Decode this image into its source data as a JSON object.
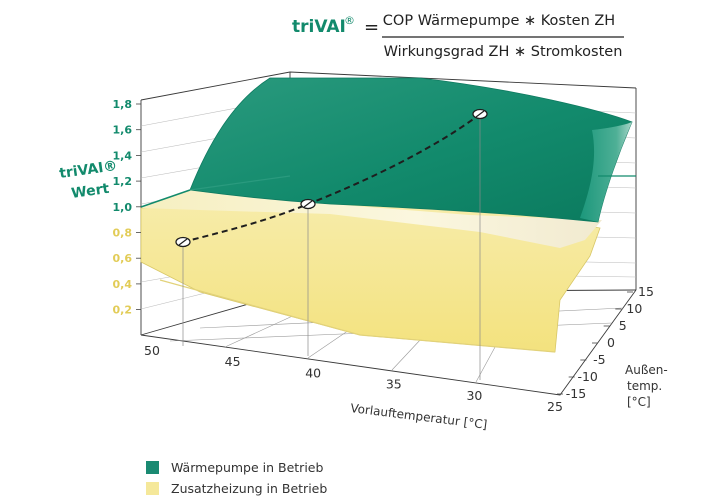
{
  "formula": {
    "name": "triVAI",
    "mark": "®",
    "equals": "=",
    "numerator": "COP Wärmepumpe ∗ Kosten ZH",
    "denominator": "Wirkungsgrad ZH ∗ Stromkosten"
  },
  "chart_data": {
    "type": "surface-3d",
    "title": "",
    "y_axis_label": [
      "triVAI®",
      "Wert"
    ],
    "y_ticks": [
      "1,8",
      "1,6",
      "1,4",
      "1,2",
      "1,0",
      "0,8",
      "0,6",
      "0,4",
      "0,2"
    ],
    "y_ticks_green": [
      "1,8",
      "1,6",
      "1,4",
      "1,2",
      "1,0"
    ],
    "y_ticks_yellow": [
      "0,8",
      "0,6",
      "0,4",
      "0,2"
    ],
    "x_axis_label": "Vorlauftemperatur [°C]",
    "x_ticks": [
      "50",
      "45",
      "40",
      "35",
      "30",
      "25"
    ],
    "z_axis_label": [
      "Außen-",
      "temp.",
      "[°C]"
    ],
    "z_ticks": [
      "15",
      "10",
      "5",
      "0",
      "-5",
      "-10",
      "-15"
    ],
    "threshold": 1.0,
    "points": [
      {
        "vorlauf": 50,
        "aussen": -10,
        "value": 0.85
      },
      {
        "vorlauf": 40,
        "aussen": -3,
        "value": 1.0
      },
      {
        "vorlauf": 30,
        "aussen": 8,
        "value": 1.6
      }
    ],
    "regions": [
      {
        "name": "Wärmepumpe in Betrieb",
        "color": "#1a8a72"
      },
      {
        "name": "Zusatzheizung in Betrieb",
        "color": "#f5e89a"
      }
    ]
  },
  "legend": [
    {
      "label": "Wärmepumpe in Betrieb",
      "color": "#1a8a72"
    },
    {
      "label": "Zusatzheizung in Betrieb",
      "color": "#f5e89a"
    }
  ]
}
